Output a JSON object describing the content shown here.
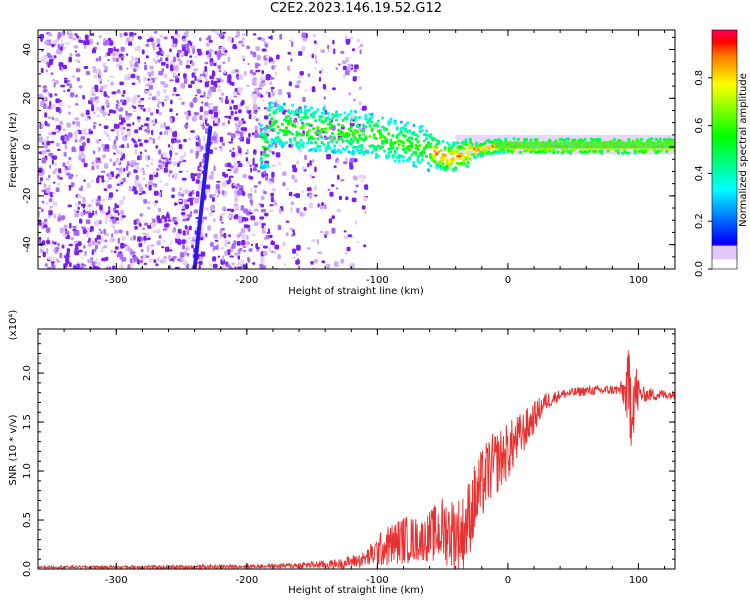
{
  "title": "C2E2.2023.146.19.52.G12",
  "chart_data": [
    {
      "type": "heatmap",
      "xlabel": "Height of straight line (km)",
      "ylabel": "Frequency (Hz)",
      "xlim": [
        -360,
        128
      ],
      "ylim": [
        -50,
        48
      ],
      "x_ticks": [
        -300,
        -200,
        -100,
        0,
        100
      ],
      "y_ticks": [
        -40,
        -20,
        0,
        20,
        40
      ],
      "colorbar": {
        "label": "Normalized spectral amplitude",
        "range": [
          0,
          1
        ],
        "ticks": [
          "0.0",
          "0.2",
          "0.4",
          "0.6",
          "0.8"
        ],
        "colormap": "rainbow"
      },
      "streak": {
        "x0": -240,
        "y0": -50,
        "x1": -228,
        "y1": 8,
        "color": "#2a18e8"
      },
      "ridge": [
        [
          -185,
          10
        ],
        [
          -170,
          9
        ],
        [
          -150,
          8
        ],
        [
          -130,
          7
        ],
        [
          -110,
          6
        ],
        [
          -95,
          4
        ],
        [
          -80,
          2
        ],
        [
          -65,
          0
        ],
        [
          -55,
          -2
        ],
        [
          -45,
          -4
        ],
        [
          -38,
          -3
        ],
        [
          -30,
          -1
        ],
        [
          -20,
          0
        ],
        [
          -10,
          1
        ],
        [
          0,
          1
        ],
        [
          20,
          1
        ],
        [
          50,
          1
        ],
        [
          90,
          1
        ],
        [
          128,
          1
        ]
      ]
    },
    {
      "type": "line",
      "xlabel": "Height of straight line (km)",
      "ylabel": "SNR (10 * v/v)",
      "yscale_label": "(x10⁴)",
      "xlim": [
        -360,
        128
      ],
      "ylim": [
        0,
        2.45
      ],
      "x_ticks": [
        -300,
        -200,
        -100,
        0,
        100
      ],
      "y_ticks": [
        "0.0",
        "0.5",
        "1.0",
        "1.5",
        "2.0"
      ],
      "series": [
        {
          "color": "#e83030",
          "envelope": [
            {
              "x": -360,
              "base": 0.02,
              "noise": 0.01
            },
            {
              "x": -250,
              "base": 0.02,
              "noise": 0.02
            },
            {
              "x": -180,
              "base": 0.03,
              "noise": 0.02
            },
            {
              "x": -130,
              "base": 0.05,
              "noise": 0.05
            },
            {
              "x": -110,
              "base": 0.1,
              "noise": 0.08
            },
            {
              "x": -95,
              "base": 0.22,
              "noise": 0.2
            },
            {
              "x": -80,
              "base": 0.3,
              "noise": 0.25
            },
            {
              "x": -65,
              "base": 0.3,
              "noise": 0.22
            },
            {
              "x": -50,
              "base": 0.4,
              "noise": 0.35
            },
            {
              "x": -35,
              "base": 0.35,
              "noise": 0.4
            },
            {
              "x": -25,
              "base": 0.7,
              "noise": 0.4
            },
            {
              "x": -15,
              "base": 1.0,
              "noise": 0.35
            },
            {
              "x": 0,
              "base": 1.2,
              "noise": 0.3
            },
            {
              "x": 15,
              "base": 1.45,
              "noise": 0.2
            },
            {
              "x": 28,
              "base": 1.7,
              "noise": 0.1
            },
            {
              "x": 40,
              "base": 1.78,
              "noise": 0.05
            },
            {
              "x": 60,
              "base": 1.82,
              "noise": 0.05
            },
            {
              "x": 85,
              "base": 1.83,
              "noise": 0.05
            },
            {
              "x": 90,
              "base": 1.8,
              "noise": 0.2
            },
            {
              "x": 93,
              "base": 1.75,
              "noise": 0.6
            },
            {
              "x": 97,
              "base": 1.8,
              "noise": 0.4
            },
            {
              "x": 102,
              "base": 1.78,
              "noise": 0.08
            },
            {
              "x": 128,
              "base": 1.78,
              "noise": 0.04
            }
          ]
        }
      ]
    }
  ]
}
